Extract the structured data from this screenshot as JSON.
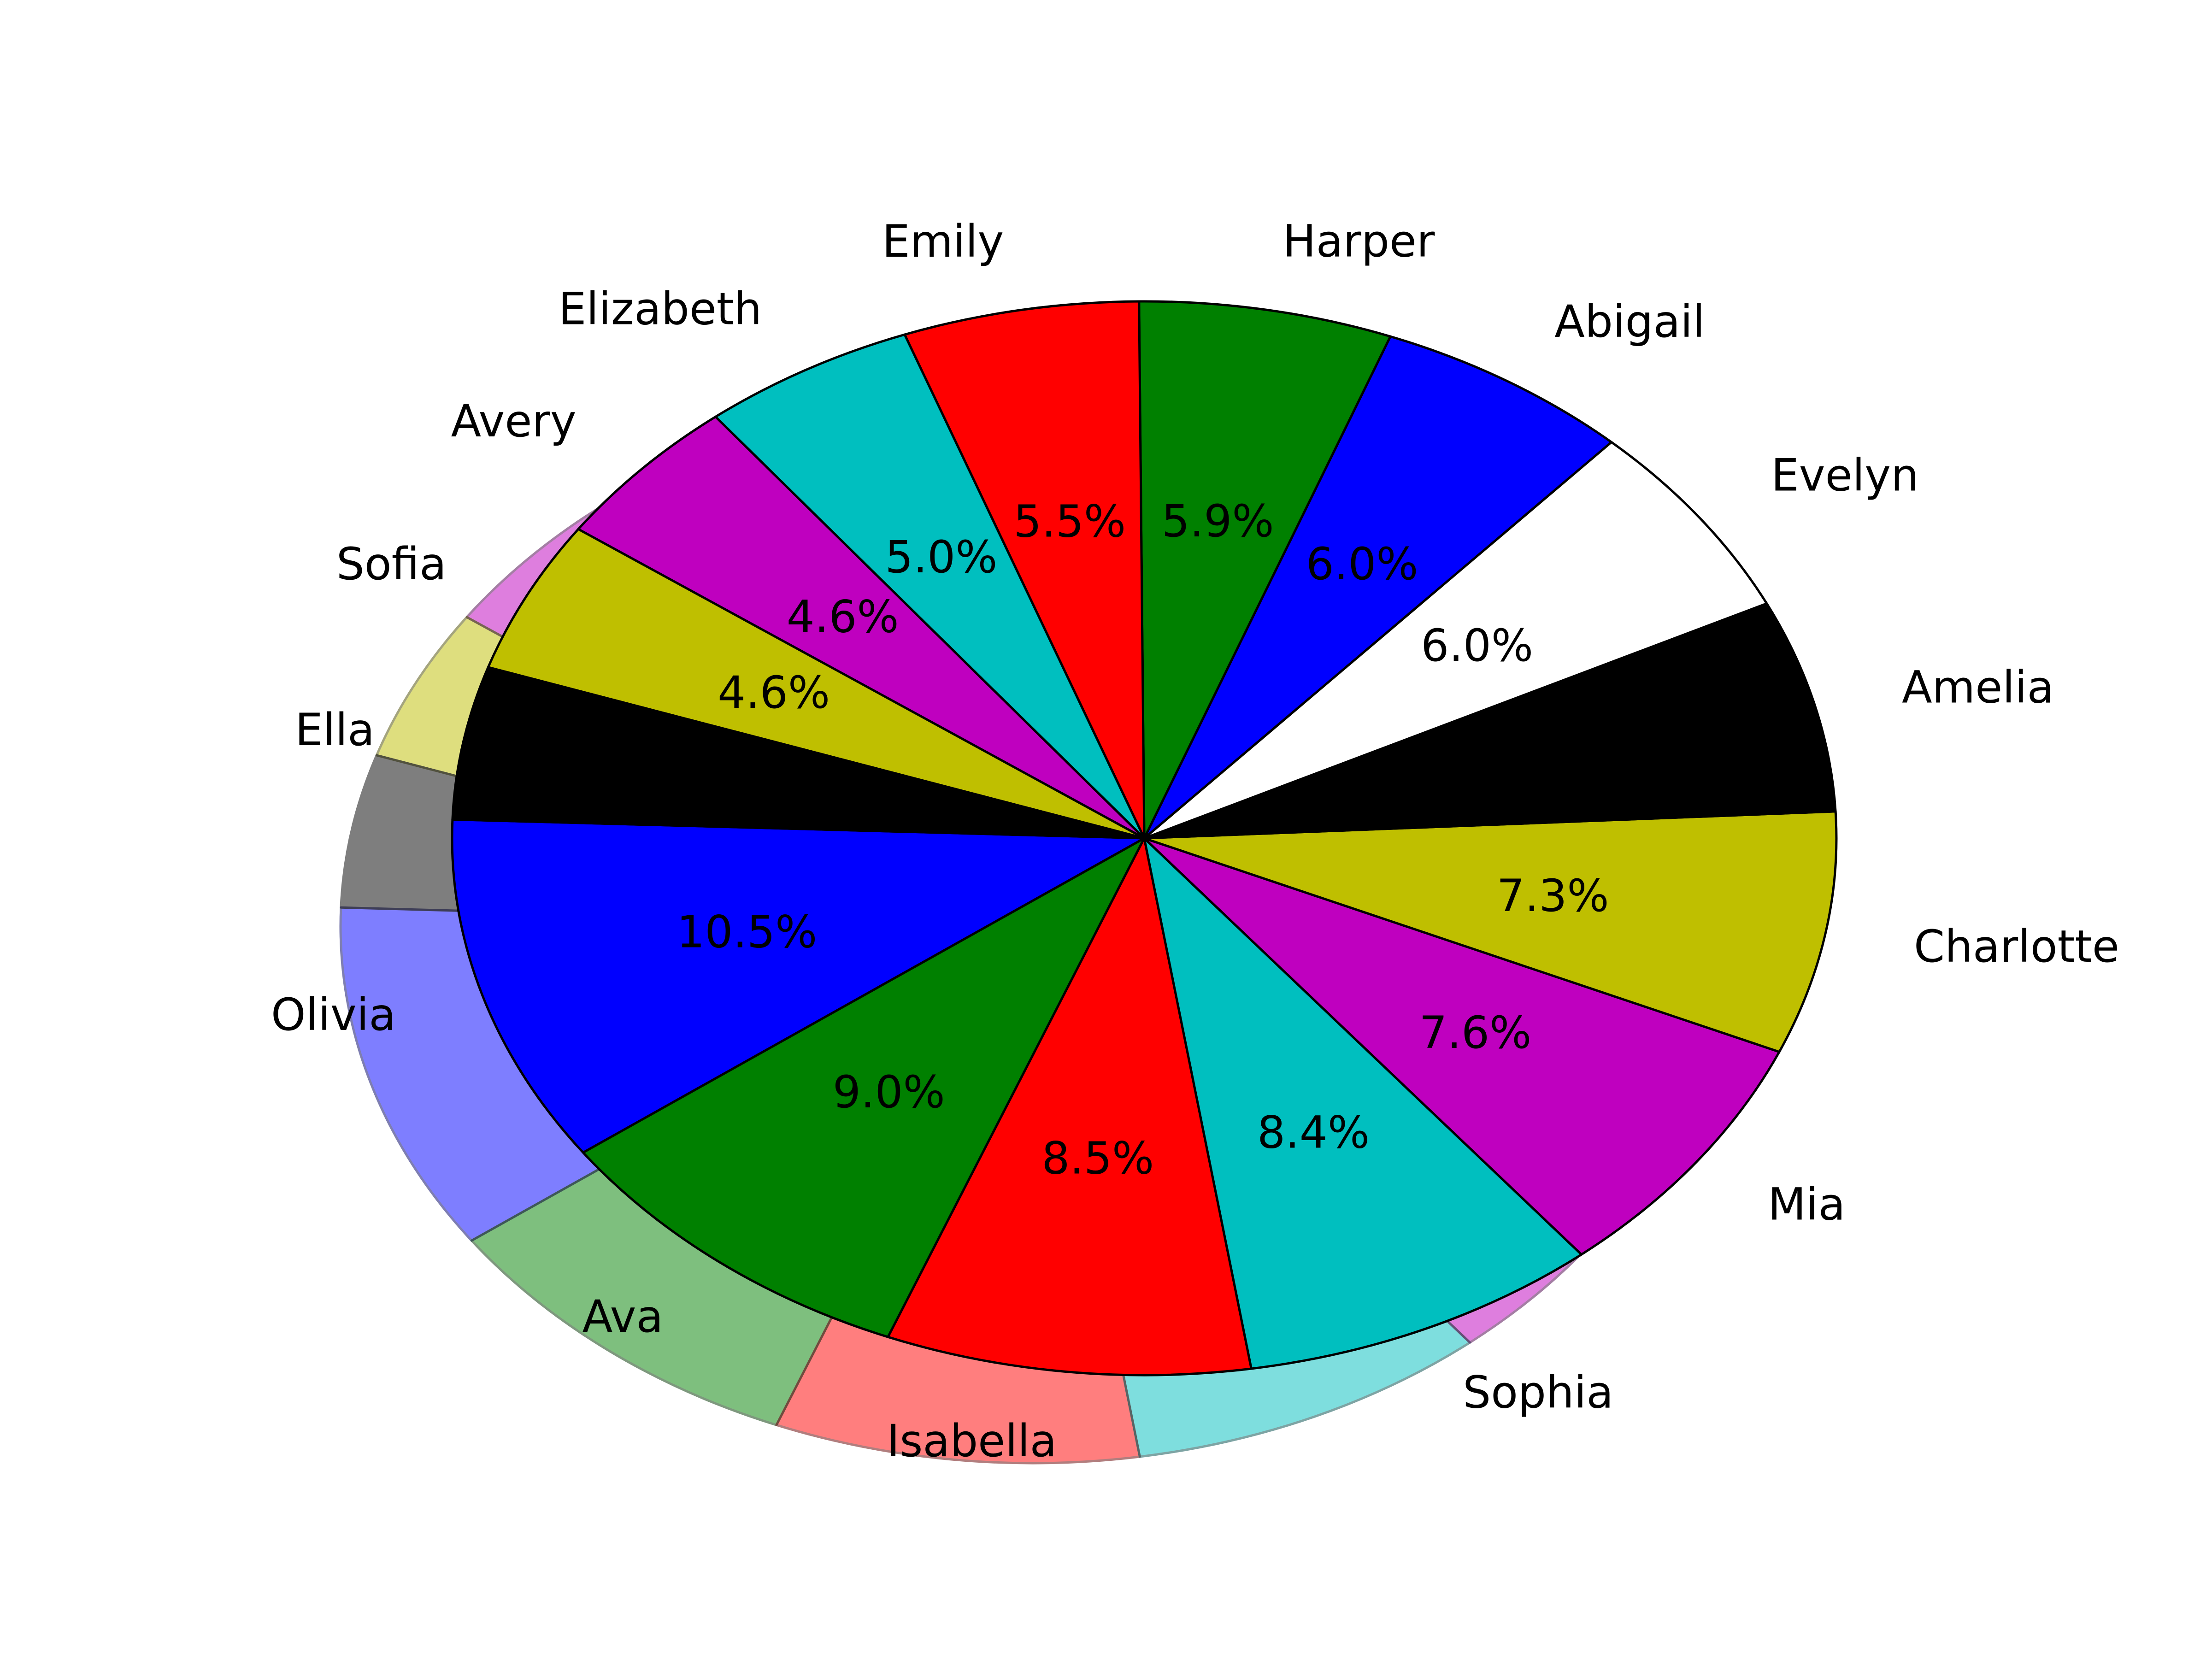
{
  "chart_data": {
    "type": "pie",
    "title": "",
    "labels": [
      "Olivia",
      "Ava",
      "Isabella",
      "Sophia",
      "Mia",
      "Charlotte",
      "Amelia",
      "Evelyn",
      "Abigail",
      "Harper",
      "Emily",
      "Elizabeth",
      "Avery",
      "Sofia",
      "Ella"
    ],
    "values": [
      10.5,
      9.0,
      8.5,
      8.4,
      7.6,
      7.3,
      6.4,
      6.0,
      6.0,
      5.9,
      5.5,
      5.0,
      4.6,
      4.6,
      4.6
    ],
    "pct_labels": [
      "10.5%",
      "9.0%",
      "8.5%",
      "8.4%",
      "7.6%",
      "7.3%",
      "6.4%",
      "6.0%",
      "6.0%",
      "5.9%",
      "5.5%",
      "5.0%",
      "4.6%",
      "4.6%",
      "4.6%"
    ],
    "colors": [
      "#0000ff",
      "#008000",
      "#ff0000",
      "#00bfbf",
      "#bf00bf",
      "#bfbf00",
      "#000000",
      "#ffffff",
      "#0000ff",
      "#008000",
      "#ff0000",
      "#00bfbf",
      "#bf00bf",
      "#bfbf00",
      "#000000"
    ],
    "shadow": true,
    "legend": "none"
  }
}
